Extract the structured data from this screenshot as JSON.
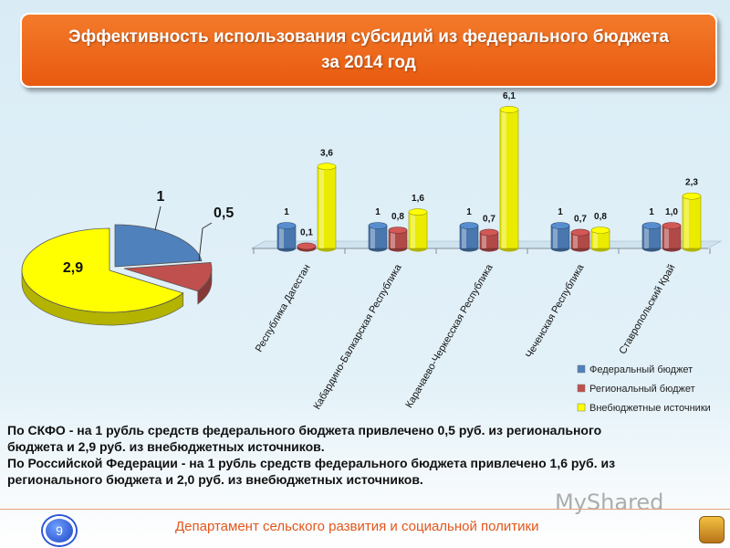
{
  "header": {
    "title_line1": "Эффективность использования субсидий из федерального бюджета",
    "title_line2": "за 2014 год"
  },
  "chart_data": [
    {
      "type": "pie",
      "slices": [
        {
          "label": "1",
          "value": 1,
          "color": "#4f81bd"
        },
        {
          "label": "0,5",
          "value": 0.5,
          "color": "#c0504d"
        },
        {
          "label": "2,9",
          "value": 2.9,
          "color": "#ffff00"
        }
      ]
    },
    {
      "type": "bar",
      "categories": [
        "Республика Дагестан",
        "Кабардино-Балкарская Республика",
        "Карачаево-Черкесская Республика",
        "Чеченская Республика",
        "Ставропольский Край"
      ],
      "series": [
        {
          "name": "Федеральный бюджет",
          "color": "#4f81bd",
          "values": [
            1,
            1,
            1,
            1,
            1
          ],
          "labels": [
            "1",
            "1",
            "1",
            "1",
            "1"
          ]
        },
        {
          "name": "Региональный бюджет",
          "color": "#c0504d",
          "values": [
            0.1,
            0.8,
            0.7,
            0.7,
            1.0
          ],
          "labels": [
            "0,1",
            "0,8",
            "0,7",
            "0,7",
            "1,0"
          ]
        },
        {
          "name": "Внебюджетные источники",
          "color": "#ffff00",
          "values": [
            3.6,
            1.6,
            6.1,
            0.8,
            2.3
          ],
          "labels": [
            "3,6",
            "1,6",
            "6,1",
            "0,8",
            "2,3"
          ]
        }
      ],
      "legend_position": "bottom-right"
    }
  ],
  "summary": {
    "line1": "По СКФО - на 1 рубль средств федерального бюджета привлечено 0,5 руб. из регионального",
    "line2": "бюджета и  2,9 руб. из внебюджетных источников.",
    "line3": "По Российской Федерации - на 1 рубль средств федерального бюджета привлечено 1,6 руб. из",
    "line4": "регионального бюджета и 2,0 руб. из внебюджетных источников."
  },
  "footer": {
    "page_number": "9",
    "department": "Департамент сельского развития и социальной политики",
    "watermark": "MyShared"
  }
}
